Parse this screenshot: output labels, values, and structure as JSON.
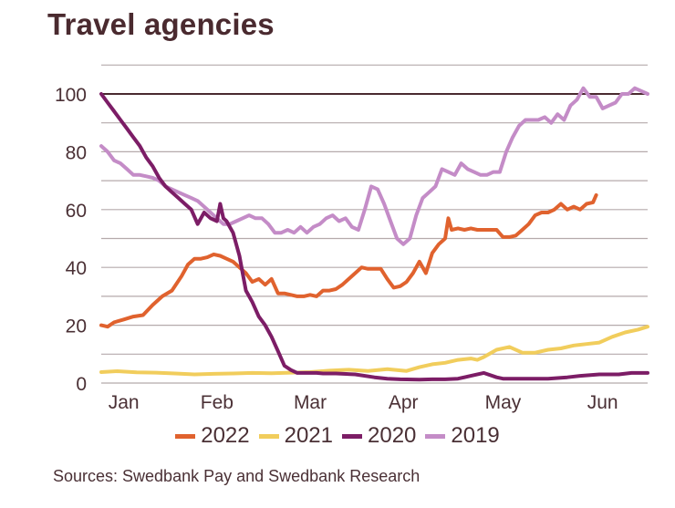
{
  "title": "Travel agencies",
  "source": "Sources: Swedbank Pay and Swedbank Research",
  "chart_data": {
    "type": "line",
    "title": "Travel agencies",
    "xlabel": "",
    "ylabel": "",
    "xlim": [
      1,
      171
    ],
    "ylim": [
      0,
      110
    ],
    "yticks": [
      0,
      20,
      40,
      60,
      80,
      100
    ],
    "ytick_labels": [
      "0",
      "20",
      "40",
      "60",
      "80",
      "100"
    ],
    "grid_step": 10,
    "reference_line": 100,
    "xtick_labels": [
      "Jan",
      "Feb",
      "Mar",
      "Apr",
      "May",
      "Jun"
    ],
    "xtick_positions": [
      8,
      37,
      66,
      95,
      126,
      157
    ],
    "legend_position": "bottom",
    "series": [
      {
        "name": "2022",
        "color": "#e0622e",
        "x": [
          1,
          3,
          5,
          8,
          11,
          14,
          17,
          20,
          23,
          26,
          28,
          30,
          32,
          34,
          36,
          38,
          40,
          42,
          44,
          46,
          48,
          50,
          52,
          54,
          56,
          58,
          60,
          62,
          64,
          66,
          68,
          70,
          72,
          74,
          76,
          78,
          80,
          82,
          84,
          86,
          88,
          90,
          92,
          94,
          96,
          98,
          100,
          102,
          104,
          106,
          108,
          109,
          110,
          112,
          114,
          116,
          118,
          120,
          122,
          124,
          126,
          128,
          130,
          132,
          134,
          136,
          138,
          140,
          142,
          144,
          146,
          148,
          150,
          152,
          154,
          155
        ],
        "values": [
          20,
          19.5,
          21,
          22,
          23,
          23.5,
          27,
          30,
          32,
          37,
          41,
          43,
          43,
          43.5,
          44.5,
          44,
          43,
          42,
          40,
          38,
          35,
          36,
          34,
          36,
          31,
          31,
          30.5,
          30,
          30,
          30.5,
          30,
          32,
          32,
          32.5,
          34,
          36,
          38,
          40,
          39.5,
          39.5,
          39.5,
          36,
          33,
          33.5,
          35,
          38,
          42,
          38,
          45,
          48,
          50,
          57,
          53,
          53.5,
          53,
          53.5,
          53,
          53,
          53,
          53,
          50.5,
          50.5,
          51,
          53,
          55,
          58,
          59,
          59,
          60,
          62,
          60,
          61,
          60,
          62,
          62.5,
          65
        ]
      },
      {
        "name": "2021",
        "color": "#f1cd5c",
        "x": [
          1,
          6,
          12,
          18,
          24,
          30,
          36,
          42,
          48,
          54,
          60,
          66,
          72,
          78,
          84,
          90,
          96,
          100,
          104,
          108,
          112,
          116,
          118,
          120,
          124,
          128,
          132,
          136,
          140,
          144,
          148,
          152,
          156,
          160,
          164,
          168,
          171
        ],
        "values": [
          3.8,
          4.1,
          3.7,
          3.6,
          3.3,
          3,
          3.2,
          3.3,
          3.5,
          3.4,
          3.6,
          3.8,
          4.3,
          4.6,
          4.2,
          4.8,
          4.2,
          5.5,
          6.5,
          7,
          8,
          8.5,
          8,
          9,
          11.5,
          12.5,
          10.5,
          10.5,
          11.5,
          12,
          13,
          13.5,
          14,
          16,
          17.5,
          18.5,
          19.5
        ]
      },
      {
        "name": "2020",
        "color": "#7c1d66",
        "x": [
          1,
          3,
          5,
          7,
          9,
          11,
          13,
          15,
          17,
          19,
          21,
          23,
          25,
          27,
          29,
          31,
          33,
          35,
          37,
          38,
          39,
          40,
          42,
          44,
          45,
          46,
          47,
          48,
          50,
          52,
          54,
          56,
          58,
          60,
          62,
          64,
          66,
          68,
          70,
          74,
          80,
          86,
          90,
          94,
          100,
          104,
          108,
          112,
          116,
          120,
          124,
          126,
          130,
          134,
          140,
          146,
          150,
          156,
          162,
          166,
          171
        ],
        "values": [
          100,
          97,
          94,
          91,
          88,
          85,
          82,
          78,
          75,
          71,
          68,
          66,
          64,
          62,
          60,
          55,
          59,
          57,
          56,
          62,
          57,
          56,
          52,
          44,
          38,
          32,
          30,
          28,
          23,
          20,
          16,
          11,
          6,
          4.5,
          3.5,
          3.5,
          3.5,
          3.5,
          3.3,
          3.3,
          3,
          2,
          1.5,
          1.3,
          1.2,
          1.3,
          1.3,
          1.5,
          2.5,
          3.5,
          2,
          1.5,
          1.5,
          1.5,
          1.5,
          2,
          2.5,
          3,
          3,
          3.5,
          3.5
        ]
      },
      {
        "name": "2019",
        "color": "#c48cc7",
        "x": [
          1,
          3,
          5,
          7,
          9,
          11,
          13,
          15,
          17,
          19,
          21,
          23,
          25,
          27,
          29,
          31,
          33,
          35,
          37,
          39,
          41,
          43,
          45,
          47,
          49,
          51,
          53,
          55,
          57,
          59,
          61,
          63,
          65,
          67,
          69,
          71,
          73,
          75,
          77,
          79,
          81,
          83,
          85,
          87,
          89,
          91,
          93,
          95,
          97,
          99,
          101,
          103,
          105,
          107,
          109,
          111,
          113,
          115,
          117,
          119,
          121,
          123,
          125,
          127,
          129,
          131,
          133,
          135,
          137,
          139,
          141,
          143,
          145,
          147,
          149,
          151,
          153,
          155,
          157,
          159,
          161,
          163,
          165,
          167,
          169,
          171
        ],
        "values": [
          82,
          80,
          77,
          76,
          74,
          72,
          72,
          71.5,
          71,
          70,
          68,
          67,
          66,
          65,
          64,
          63,
          61,
          59,
          57,
          55,
          55,
          56,
          57,
          58,
          57,
          57,
          55,
          52,
          52,
          53,
          52,
          54,
          52,
          54,
          55,
          57,
          58,
          56,
          57,
          54,
          53,
          60,
          68,
          67,
          62,
          56,
          50,
          48,
          50,
          58,
          64,
          66,
          68,
          74,
          73,
          72,
          76,
          74,
          73,
          72,
          72,
          73,
          73,
          80,
          85,
          89,
          91,
          91,
          91,
          92,
          90,
          93,
          91,
          96,
          98,
          102,
          99,
          99,
          95,
          96,
          97,
          100,
          100,
          102,
          101,
          100
        ]
      }
    ]
  }
}
